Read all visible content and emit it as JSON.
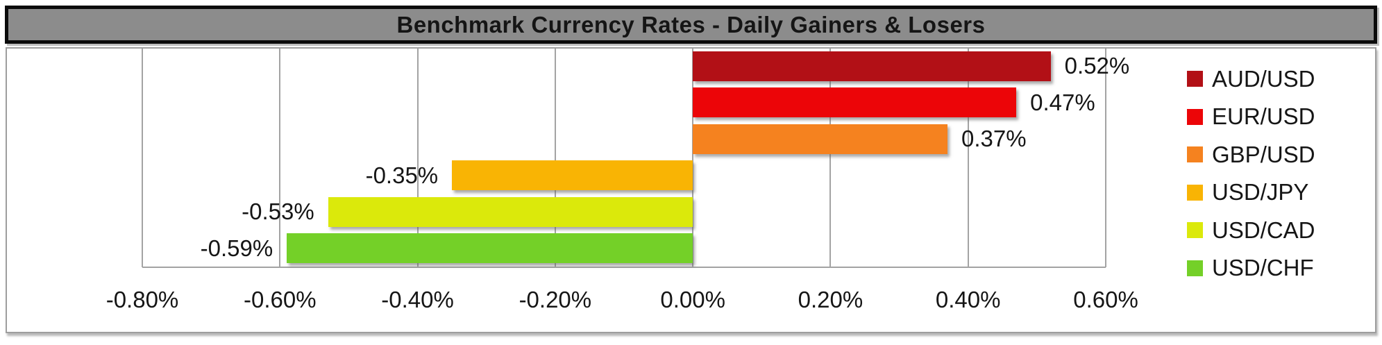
{
  "title_bar": {
    "title": "Benchmark Currency Rates - Daily Gainers & Losers"
  },
  "colors": {
    "title_bar_bg": "#8C8C8C",
    "title_bar_border": "#0B0B0B",
    "chart_border": "#9E9E9E",
    "gridline": "#A3A3A3",
    "label_text": "#151515"
  },
  "chart_data": {
    "type": "bar",
    "orientation": "horizontal",
    "title": "Benchmark Currency Rates - Daily Gainers & Losers",
    "categories": [
      "AUD/USD",
      "EUR/USD",
      "GBP/USD",
      "USD/JPY",
      "USD/CAD",
      "USD/CHF"
    ],
    "values": [
      0.52,
      0.47,
      0.37,
      -0.35,
      -0.53,
      -0.59
    ],
    "value_labels": [
      "0.52%",
      "0.47%",
      "0.37%",
      "-0.35%",
      "-0.53%",
      "-0.59%"
    ],
    "bar_colors": [
      "#B21016",
      "#EC0508",
      "#F5821F",
      "#F9B404",
      "#DBE90B",
      "#74D028"
    ],
    "x_ticks": [
      "-0.80%",
      "-0.60%",
      "-0.40%",
      "-0.20%",
      "0.00%",
      "0.20%",
      "0.40%",
      "0.60%"
    ],
    "x_tick_values": [
      -0.8,
      -0.6,
      -0.4,
      -0.2,
      0.0,
      0.2,
      0.4,
      0.6
    ],
    "xlim": [
      -0.8,
      0.6
    ],
    "grid": true,
    "legend_position": "right",
    "legend": [
      "AUD/USD",
      "EUR/USD",
      "GBP/USD",
      "USD/JPY",
      "USD/CAD",
      "USD/CHF"
    ]
  }
}
